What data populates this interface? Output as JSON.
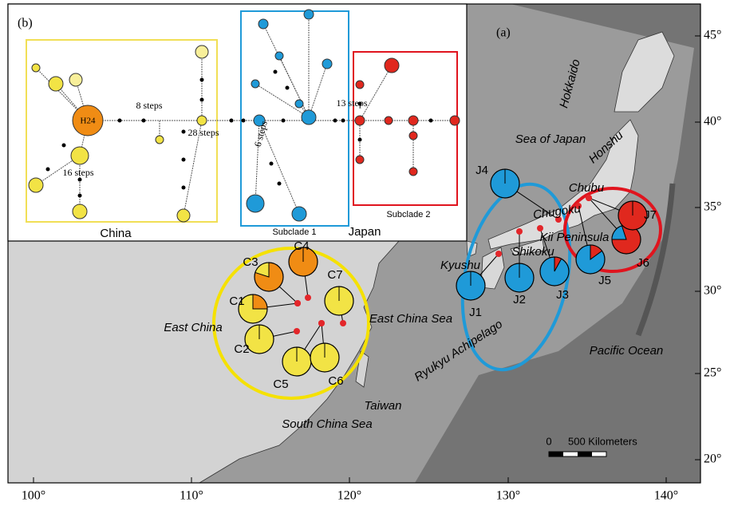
{
  "panel_a_label": "(a)",
  "panel_b_label": "(b)",
  "longitude_labels": [
    "100°",
    "110°",
    "120°",
    "130°",
    "140°"
  ],
  "latitude_labels": [
    "20°",
    "25°",
    "30°",
    "35°",
    "40°",
    "45°"
  ],
  "places": [
    "Hokkaido",
    "Sea of Japan",
    "Honshu",
    "Chubu",
    "Chugoku",
    "Kii Peninsula",
    "Shikoku",
    "Kyushu",
    "East China",
    "East China Sea",
    "Pacific Ocean",
    "Ryukyu Achipelago",
    "Taiwan",
    "South China Sea"
  ],
  "populations": [
    "C1",
    "C2",
    "C3",
    "C4",
    "C5",
    "C6",
    "C7",
    "J1",
    "J2",
    "J3",
    "J4",
    "J5",
    "J6",
    "J7"
  ],
  "scale": {
    "zero": "0",
    "label": "500 Kilometers"
  },
  "network": {
    "groups": [
      "China",
      "Subclade 1",
      "Japan",
      "Subclade 2"
    ],
    "haplotype": "H24",
    "steps": [
      "8 steps",
      "28 steps",
      "13 steps",
      "6 steps",
      "16 steps"
    ]
  }
}
